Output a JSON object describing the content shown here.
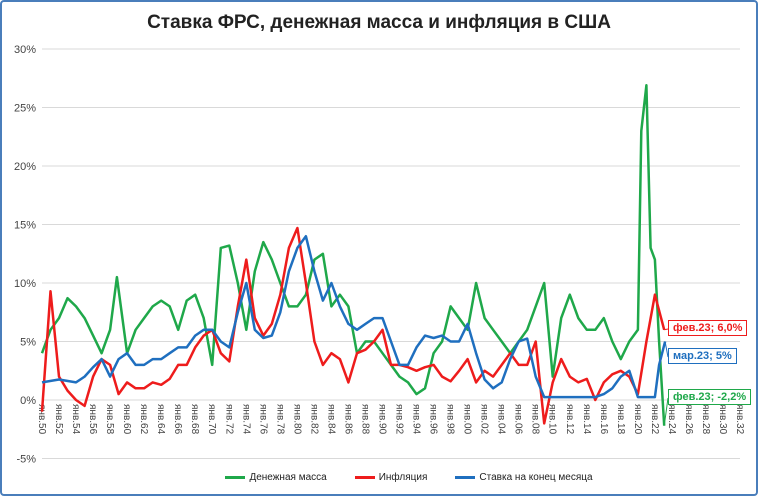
{
  "chart_data": {
    "type": "line",
    "title": "Ставка ФРС, денежная масса и инфляция в США",
    "ylim": [
      -5,
      30
    ],
    "yticks": [
      "-5%",
      "0%",
      "5%",
      "10%",
      "15%",
      "20%",
      "25%",
      "30%"
    ],
    "xlim": [
      1950,
      2032
    ],
    "xticks": [
      "янв.50",
      "янв.52",
      "янв.54",
      "янв.56",
      "янв.58",
      "янв.60",
      "янв.62",
      "янв.64",
      "янв.66",
      "янв.68",
      "янв.70",
      "янв.72",
      "янв.74",
      "янв.76",
      "янв.78",
      "янв.80",
      "янв.82",
      "янв.84",
      "янв.86",
      "янв.88",
      "янв.90",
      "янв.92",
      "янв.94",
      "янв.96",
      "янв.98",
      "янв.00",
      "янв.02",
      "янв.04",
      "янв.06",
      "янв.08",
      "янв.10",
      "янв.12",
      "янв.14",
      "янв.16",
      "янв.18",
      "янв.20",
      "янв.22",
      "янв.24",
      "янв.26",
      "янв.28",
      "янв.30",
      "янв.32"
    ],
    "grid": true,
    "legend_position": "bottom",
    "series": [
      {
        "name": "Денежная масса",
        "color": "#1fa84a",
        "points": [
          [
            1950,
            4
          ],
          [
            1951,
            6
          ],
          [
            1952,
            7
          ],
          [
            1953,
            8.7
          ],
          [
            1954,
            8
          ],
          [
            1955,
            7
          ],
          [
            1956,
            5.5
          ],
          [
            1957,
            4
          ],
          [
            1958,
            6
          ],
          [
            1958.8,
            10.5
          ],
          [
            1960,
            4
          ],
          [
            1961,
            6
          ],
          [
            1962,
            7
          ],
          [
            1963,
            8
          ],
          [
            1964,
            8.5
          ],
          [
            1965,
            8
          ],
          [
            1966,
            6
          ],
          [
            1967,
            8.5
          ],
          [
            1968,
            9
          ],
          [
            1969,
            7
          ],
          [
            1970,
            3
          ],
          [
            1971,
            13
          ],
          [
            1972,
            13.2
          ],
          [
            1973,
            10
          ],
          [
            1974,
            6
          ],
          [
            1975,
            11
          ],
          [
            1976,
            13.5
          ],
          [
            1977,
            12
          ],
          [
            1978,
            10
          ],
          [
            1979,
            8
          ],
          [
            1980,
            8
          ],
          [
            1981,
            9
          ],
          [
            1982,
            12
          ],
          [
            1983,
            12.5
          ],
          [
            1984,
            8
          ],
          [
            1985,
            9
          ],
          [
            1986,
            8
          ],
          [
            1987,
            4
          ],
          [
            1988,
            5
          ],
          [
            1989,
            5
          ],
          [
            1990,
            4
          ],
          [
            1991,
            3
          ],
          [
            1992,
            2
          ],
          [
            1993,
            1.5
          ],
          [
            1994,
            0.5
          ],
          [
            1995,
            1
          ],
          [
            1996,
            4
          ],
          [
            1997,
            5
          ],
          [
            1998,
            8
          ],
          [
            1999,
            7
          ],
          [
            2000,
            6
          ],
          [
            2001,
            10
          ],
          [
            2002,
            7
          ],
          [
            2003,
            6
          ],
          [
            2004,
            5
          ],
          [
            2005,
            4
          ],
          [
            2006,
            5
          ],
          [
            2007,
            6
          ],
          [
            2008,
            8
          ],
          [
            2009,
            10
          ],
          [
            2010,
            2
          ],
          [
            2011,
            7
          ],
          [
            2012,
            9
          ],
          [
            2013,
            7
          ],
          [
            2014,
            6
          ],
          [
            2015,
            6
          ],
          [
            2016,
            7
          ],
          [
            2017,
            5
          ],
          [
            2018,
            3.5
          ],
          [
            2019,
            5
          ],
          [
            2020,
            6
          ],
          [
            2020.4,
            23
          ],
          [
            2021,
            26.9
          ],
          [
            2021.5,
            13
          ],
          [
            2022,
            12
          ],
          [
            2022.5,
            5
          ],
          [
            2023.1,
            -2.2
          ]
        ]
      },
      {
        "name": "Инфляция",
        "color": "#ee1c1c",
        "points": [
          [
            1950,
            -1
          ],
          [
            1951,
            9.3
          ],
          [
            1952,
            2
          ],
          [
            1953,
            0.8
          ],
          [
            1954,
            0
          ],
          [
            1955,
            -0.5
          ],
          [
            1956,
            2
          ],
          [
            1957,
            3.5
          ],
          [
            1958,
            3
          ],
          [
            1959,
            0.5
          ],
          [
            1960,
            1.5
          ],
          [
            1961,
            1
          ],
          [
            1962,
            1
          ],
          [
            1963,
            1.5
          ],
          [
            1964,
            1.3
          ],
          [
            1965,
            1.8
          ],
          [
            1966,
            3
          ],
          [
            1967,
            3
          ],
          [
            1968,
            4.5
          ],
          [
            1969,
            5.5
          ],
          [
            1970,
            6
          ],
          [
            1971,
            4
          ],
          [
            1972,
            3.3
          ],
          [
            1973,
            8
          ],
          [
            1974,
            12
          ],
          [
            1975,
            7
          ],
          [
            1976,
            5.5
          ],
          [
            1977,
            6.5
          ],
          [
            1978,
            9
          ],
          [
            1979,
            13
          ],
          [
            1980,
            14.7
          ],
          [
            1981,
            10
          ],
          [
            1982,
            5
          ],
          [
            1983,
            3
          ],
          [
            1984,
            4
          ],
          [
            1985,
            3.5
          ],
          [
            1986,
            1.5
          ],
          [
            1987,
            4
          ],
          [
            1988,
            4.3
          ],
          [
            1989,
            5
          ],
          [
            1990,
            6
          ],
          [
            1991,
            3
          ],
          [
            1992,
            3
          ],
          [
            1993,
            2.8
          ],
          [
            1994,
            2.5
          ],
          [
            1995,
            2.8
          ],
          [
            1996,
            3
          ],
          [
            1997,
            2
          ],
          [
            1998,
            1.6
          ],
          [
            1999,
            2.5
          ],
          [
            2000,
            3.5
          ],
          [
            2001,
            1.5
          ],
          [
            2002,
            2.5
          ],
          [
            2003,
            2
          ],
          [
            2004,
            3
          ],
          [
            2005,
            4
          ],
          [
            2006,
            3
          ],
          [
            2007,
            3
          ],
          [
            2008,
            5
          ],
          [
            2009,
            -2
          ],
          [
            2010,
            1.5
          ],
          [
            2011,
            3.5
          ],
          [
            2012,
            2
          ],
          [
            2013,
            1.5
          ],
          [
            2014,
            1.8
          ],
          [
            2015,
            0
          ],
          [
            2016,
            1.5
          ],
          [
            2017,
            2.2
          ],
          [
            2018,
            2.5
          ],
          [
            2019,
            2
          ],
          [
            2020,
            0.5
          ],
          [
            2021,
            5
          ],
          [
            2022,
            9
          ],
          [
            2023.1,
            6
          ]
        ]
      },
      {
        "name": "Ставка на конец месяца",
        "color": "#1f6fbf",
        "points": [
          [
            1950,
            1.5
          ],
          [
            1952,
            1.75
          ],
          [
            1954,
            1.5
          ],
          [
            1955,
            2
          ],
          [
            1956,
            2.8
          ],
          [
            1957,
            3.5
          ],
          [
            1958,
            2
          ],
          [
            1959,
            3.5
          ],
          [
            1960,
            4
          ],
          [
            1961,
            3
          ],
          [
            1962,
            3
          ],
          [
            1963,
            3.5
          ],
          [
            1964,
            3.5
          ],
          [
            1965,
            4
          ],
          [
            1966,
            4.5
          ],
          [
            1967,
            4.5
          ],
          [
            1968,
            5.5
          ],
          [
            1969,
            6
          ],
          [
            1970,
            6
          ],
          [
            1971,
            5
          ],
          [
            1972,
            4.5
          ],
          [
            1973,
            7.5
          ],
          [
            1974,
            10
          ],
          [
            1975,
            6
          ],
          [
            1976,
            5.3
          ],
          [
            1977,
            5.5
          ],
          [
            1978,
            7.5
          ],
          [
            1979,
            11
          ],
          [
            1980,
            13
          ],
          [
            1981,
            14
          ],
          [
            1982,
            11
          ],
          [
            1983,
            8.5
          ],
          [
            1984,
            10
          ],
          [
            1985,
            8
          ],
          [
            1986,
            6.5
          ],
          [
            1987,
            6
          ],
          [
            1988,
            6.5
          ],
          [
            1989,
            7
          ],
          [
            1990,
            7
          ],
          [
            1991,
            5
          ],
          [
            1992,
            3
          ],
          [
            1993,
            3
          ],
          [
            1994,
            4.5
          ],
          [
            1995,
            5.5
          ],
          [
            1996,
            5.3
          ],
          [
            1997,
            5.5
          ],
          [
            1998,
            5
          ],
          [
            1999,
            5
          ],
          [
            2000,
            6.5
          ],
          [
            2001,
            4
          ],
          [
            2002,
            1.75
          ],
          [
            2003,
            1
          ],
          [
            2004,
            1.5
          ],
          [
            2005,
            3.5
          ],
          [
            2006,
            5
          ],
          [
            2007,
            5.25
          ],
          [
            2008,
            2
          ],
          [
            2009,
            0.25
          ],
          [
            2015,
            0.25
          ],
          [
            2016,
            0.5
          ],
          [
            2017,
            1
          ],
          [
            2018,
            2
          ],
          [
            2019,
            2.5
          ],
          [
            2020,
            0.25
          ],
          [
            2022,
            0.25
          ],
          [
            2022.5,
            3
          ],
          [
            2023.2,
            5
          ]
        ]
      }
    ],
    "annotations": [
      {
        "text": "фев.23; 6,0%",
        "color": "#ee1c1c"
      },
      {
        "text": "мар.23; 5%",
        "color": "#1f6fbf"
      },
      {
        "text": "фев.23; -2,2%",
        "color": "#1fa84a"
      }
    ]
  }
}
